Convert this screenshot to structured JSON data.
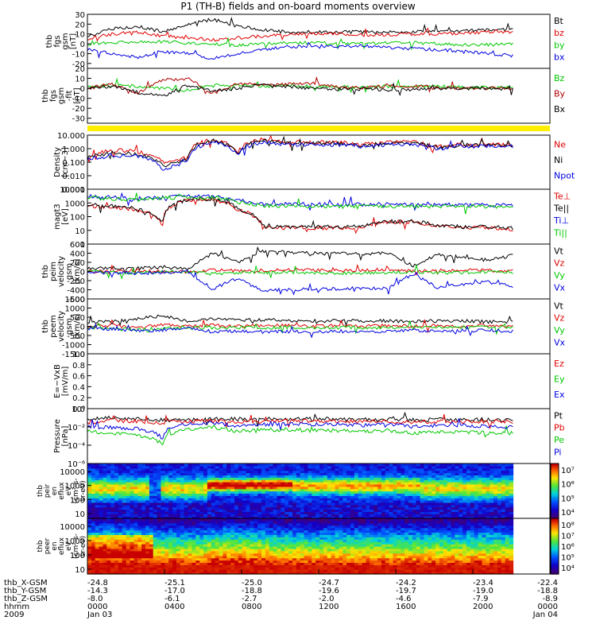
{
  "title": "P1 (TH-B) fields and on-board moments overview",
  "chart_data": [
    {
      "type": "line",
      "ylabel": [
        "thb",
        "fgs",
        "gsm",
        "[nT]"
      ],
      "ylim": [
        -25,
        30
      ],
      "yticks": [
        -20,
        -10,
        0,
        10,
        20,
        30
      ],
      "grid": false,
      "legend_placement": "right",
      "series": [
        {
          "name": "Bt",
          "color": "#000000",
          "values": [
            8,
            15,
            18,
            12,
            20,
            25,
            18,
            14,
            12,
            12,
            12,
            12,
            12,
            12,
            13,
            13,
            14,
            15
          ]
        },
        {
          "name": "bz",
          "color": "#e00000",
          "values": [
            5,
            10,
            12,
            8,
            6,
            4,
            6,
            8,
            9,
            10,
            10,
            9,
            9,
            10,
            10,
            11,
            12,
            12
          ]
        },
        {
          "name": "by",
          "color": "#00c800",
          "values": [
            0,
            1,
            2,
            2,
            1,
            0,
            -2,
            0,
            1,
            1,
            0,
            0,
            1,
            1,
            0,
            -1,
            -1,
            0
          ]
        },
        {
          "name": "bx",
          "color": "#0000e0",
          "values": [
            -6,
            -10,
            -14,
            -8,
            -10,
            -15,
            -10,
            -6,
            -3,
            -2,
            -3,
            -2,
            -4,
            -5,
            -6,
            -8,
            -10,
            -12
          ]
        }
      ]
    },
    {
      "type": "line",
      "ylabel": [
        "thb",
        "fgs",
        "gsm",
        "-fit",
        "[nT]"
      ],
      "ylim": [
        -35,
        20
      ],
      "yticks": [
        -30,
        -20,
        -10,
        0,
        10,
        20
      ],
      "grid": false,
      "legend_placement": "right",
      "series": [
        {
          "name": "Bz",
          "color": "#00c800",
          "values": [
            2,
            3,
            2,
            0,
            -2,
            4,
            3,
            2,
            3,
            2,
            2,
            1,
            2,
            2,
            2,
            1,
            1,
            1
          ]
        },
        {
          "name": "By",
          "color": "#b00000",
          "values": [
            0,
            4,
            -5,
            8,
            10,
            -5,
            5,
            3,
            4,
            5,
            2,
            0,
            3,
            2,
            1,
            0,
            0,
            0
          ]
        },
        {
          "name": "Bx",
          "color": "#000000",
          "values": [
            0,
            2,
            -4,
            -8,
            3,
            -3,
            0,
            4,
            2,
            0,
            -1,
            0,
            -2,
            -1,
            0,
            0,
            0,
            -1
          ]
        }
      ]
    },
    {
      "type": "line",
      "ylabel": [
        "Density",
        "[cm−3]"
      ],
      "yscale": "log",
      "ylim": [
        0.001,
        10
      ],
      "ytick_labels": [
        "0.001",
        "0.010",
        "0.100",
        "1.000",
        "10.000"
      ],
      "grid": false,
      "legend_placement": "right",
      "series": [
        {
          "name": "Ne",
          "color": "#e00000",
          "values": [
            0.3,
            0.8,
            0.6,
            0.1,
            0.2,
            5,
            0.5,
            5,
            3,
            3,
            3,
            2,
            3,
            3,
            1.5,
            2,
            2,
            2
          ]
        },
        {
          "name": "Ni",
          "color": "#000000",
          "values": [
            0.2,
            0.5,
            0.4,
            0.05,
            0.15,
            4,
            0.4,
            4,
            2.5,
            2.5,
            2.5,
            1.8,
            2.5,
            2.5,
            1.2,
            1.8,
            1.8,
            1.8
          ]
        },
        {
          "name": "Npot",
          "color": "#0000e0",
          "values": [
            0.15,
            0.3,
            0.3,
            0.02,
            0.1,
            3,
            0.3,
            3,
            2,
            2,
            2,
            1.5,
            2,
            2,
            1,
            1.5,
            1.5,
            1.5
          ]
        }
      ]
    },
    {
      "type": "line",
      "ylabel": [
        "magt3",
        "[eV]"
      ],
      "yscale": "log",
      "ylim": [
        1,
        10000
      ],
      "ytick_labels": [
        "1",
        "10",
        "100",
        "1000",
        "10000"
      ],
      "grid": false,
      "legend_placement": "right",
      "series": [
        {
          "name": "Te⊥",
          "color": "#e00000",
          "values": [
            600,
            500,
            300,
            20,
            1500,
            1800,
            300,
            15,
            15,
            15,
            15,
            15,
            40,
            40,
            20,
            15,
            15,
            12
          ]
        },
        {
          "name": "Te||",
          "color": "#000000",
          "values": [
            700,
            600,
            350,
            25,
            1700,
            2000,
            350,
            18,
            18,
            18,
            18,
            18,
            45,
            45,
            22,
            18,
            18,
            14
          ]
        },
        {
          "name": "Ti⊥",
          "color": "#0000e0",
          "values": [
            3000,
            2500,
            2000,
            2500,
            3000,
            3000,
            1500,
            800,
            800,
            800,
            800,
            800,
            800,
            700,
            700,
            700,
            700,
            700
          ]
        },
        {
          "name": "Ti||",
          "color": "#00c800",
          "values": [
            2500,
            2000,
            1800,
            2200,
            2500,
            2500,
            1200,
            600,
            600,
            600,
            600,
            600,
            600,
            550,
            550,
            550,
            550,
            550
          ]
        }
      ]
    },
    {
      "type": "line",
      "ylabel": [
        "thb",
        "peim",
        "velocity",
        "gsm",
        "[km/s]"
      ],
      "ylim": [
        -600,
        600
      ],
      "yticks": [
        -600,
        -400,
        -200,
        0,
        200,
        400,
        600
      ],
      "grid": false,
      "legend_placement": "right",
      "series": [
        {
          "name": "Vt",
          "color": "#000000",
          "values": [
            60,
            80,
            70,
            100,
            50,
            400,
            200,
            450,
            420,
            400,
            400,
            380,
            400,
            120,
            380,
            300,
            250,
            350
          ]
        },
        {
          "name": "Vz",
          "color": "#e00000",
          "values": [
            0,
            10,
            20,
            0,
            -10,
            30,
            10,
            20,
            40,
            30,
            20,
            30,
            40,
            10,
            20,
            30,
            20,
            10
          ]
        },
        {
          "name": "Vy",
          "color": "#00c800",
          "values": [
            0,
            -20,
            -30,
            -10,
            0,
            -50,
            -20,
            -30,
            -20,
            -30,
            -40,
            -30,
            -20,
            0,
            -30,
            -20,
            -10,
            -20
          ]
        },
        {
          "name": "Vx",
          "color": "#0000e0",
          "values": [
            -20,
            -30,
            -40,
            -20,
            0,
            -380,
            -150,
            -420,
            -400,
            -380,
            -380,
            -360,
            -380,
            -50,
            -350,
            -280,
            -230,
            -320
          ]
        }
      ]
    },
    {
      "type": "line",
      "ylabel": [
        "thb",
        "peem",
        "velocity",
        "gsm",
        "[km/s]"
      ],
      "ylim": [
        -1500,
        1500
      ],
      "yticks": [
        -1500,
        -1000,
        -500,
        0,
        500,
        1000,
        1500
      ],
      "grid": false,
      "legend_placement": "right",
      "series": [
        {
          "name": "Vt",
          "color": "#000000",
          "values": [
            200,
            300,
            400,
            600,
            300,
            400,
            350,
            350,
            300,
            300,
            300,
            300,
            300,
            250,
            300,
            300,
            250,
            250
          ]
        },
        {
          "name": "Vz",
          "color": "#e00000",
          "values": [
            0,
            50,
            -100,
            100,
            0,
            50,
            0,
            50,
            50,
            0,
            50,
            0,
            50,
            0,
            50,
            0,
            50,
            0
          ]
        },
        {
          "name": "Vy",
          "color": "#00c800",
          "values": [
            -50,
            -100,
            -200,
            -100,
            -50,
            -80,
            -60,
            -80,
            -60,
            -80,
            -60,
            -80,
            -60,
            -50,
            -60,
            -50,
            -60,
            -50
          ]
        },
        {
          "name": "Vx",
          "color": "#0000e0",
          "values": [
            -100,
            -150,
            -250,
            -200,
            -100,
            -300,
            -250,
            -300,
            -280,
            -280,
            -280,
            -260,
            -280,
            -200,
            -260,
            -240,
            -220,
            -260
          ]
        }
      ]
    },
    {
      "type": "line",
      "ylabel": [
        "E=−VxB",
        "[mV/m]"
      ],
      "ylim": [
        0,
        1
      ],
      "yticks": [
        0.0,
        0.2,
        0.4,
        0.6,
        0.8,
        1.0
      ],
      "ytick_labels": [
        "0.0",
        "0.2",
        "0.4",
        "0.6",
        "0.8",
        "1.0"
      ],
      "grid": false,
      "legend_placement": "right",
      "series": [
        {
          "name": "Ez",
          "color": "#e00000",
          "values": []
        },
        {
          "name": "Ey",
          "color": "#00c800",
          "values": []
        },
        {
          "name": "Ex",
          "color": "#0000e0",
          "values": []
        }
      ]
    },
    {
      "type": "line",
      "ylabel": [
        "Pressure",
        "[nPa]"
      ],
      "yscale": "log",
      "ylim": [
        1e-06,
        1
      ],
      "ytick_labels": [
        "10⁻⁶",
        "10⁻⁴",
        "10⁻²",
        "10⁰"
      ],
      "grid": false,
      "legend_placement": "right",
      "series": [
        {
          "name": "Pt",
          "color": "#000000",
          "values": [
            0.08,
            0.1,
            0.08,
            0.05,
            0.06,
            0.08,
            0.07,
            0.07,
            0.08,
            0.07,
            0.07,
            0.06,
            0.07,
            0.06,
            0.06,
            0.07,
            0.06,
            0.06
          ]
        },
        {
          "name": "Pb",
          "color": "#e00000",
          "values": [
            0.03,
            0.05,
            0.04,
            0.03,
            0.04,
            0.05,
            0.04,
            0.04,
            0.05,
            0.04,
            0.04,
            0.04,
            0.04,
            0.03,
            0.04,
            0.04,
            0.04,
            0.04
          ]
        },
        {
          "name": "Pe",
          "color": "#00c800",
          "values": [
            0.003,
            0.002,
            0.001,
            0.0001,
            0.005,
            0.008,
            0.003,
            0.005,
            0.005,
            0.004,
            0.004,
            0.003,
            0.004,
            0.002,
            0.003,
            0.003,
            0.002,
            0.002
          ]
        },
        {
          "name": "Pi",
          "color": "#0000e0",
          "values": [
            0.01,
            0.008,
            0.006,
            0.0005,
            0.02,
            0.03,
            0.01,
            0.02,
            0.02,
            0.02,
            0.02,
            0.015,
            0.02,
            0.01,
            0.015,
            0.015,
            0.01,
            0.01
          ]
        }
      ]
    },
    {
      "type": "heatmap",
      "ylabel": [
        "thb",
        "peir",
        "en",
        "eflux",
        "eV",
        "(cm²-s-",
        "sr-eV)"
      ],
      "yscale": "log",
      "ylim": [
        10,
        20000
      ],
      "ytick_labels": [
        "10",
        "100",
        "1000",
        "10000"
      ],
      "colorbar_labels": [
        "10⁴",
        "10⁵",
        "10⁶",
        "10⁷"
      ],
      "clim": [
        3000,
        10000000
      ]
    },
    {
      "type": "heatmap",
      "ylabel": [
        "thb",
        "peer",
        "en",
        "eflux",
        "eV",
        "(cm²-s-",
        "sr-eV)"
      ],
      "yscale": "log",
      "ylim": [
        8,
        20000
      ],
      "ytick_labels": [
        "10",
        "100",
        "1000",
        "10000"
      ],
      "colorbar_labels": [
        "10⁴",
        "10⁵",
        "10⁶",
        "10⁷",
        "10⁸"
      ],
      "clim": [
        3000,
        200000000
      ]
    }
  ],
  "footer": {
    "row_labels": [
      "thb_X-GSM",
      "thb_Y-GSM",
      "thb_Z-GSM",
      "hhmm",
      "2009"
    ],
    "columns": [
      {
        "x": "-24.8",
        "y": "-14.3",
        "z": "-8.0",
        "hhmm": "0000",
        "date": "Jan 03"
      },
      {
        "x": "-25.1",
        "y": "-17.0",
        "z": "-6.1",
        "hhmm": "0400",
        "date": ""
      },
      {
        "x": "-25.0",
        "y": "-18.8",
        "z": "-2.7",
        "hhmm": "0800",
        "date": ""
      },
      {
        "x": "-24.7",
        "y": "-19.6",
        "z": "-2.0",
        "hhmm": "1200",
        "date": ""
      },
      {
        "x": "-24.2",
        "y": "-19.7",
        "z": "-4.6",
        "hhmm": "1600",
        "date": ""
      },
      {
        "x": "-23.4",
        "y": "-19.0",
        "z": "-7.9",
        "hhmm": "2000",
        "date": ""
      },
      {
        "x": "-22.4",
        "y": "-18.8",
        "z": "-8.9",
        "hhmm": "0000",
        "date": "Jan 04"
      }
    ]
  },
  "colors": {
    "status_bar": "#ffee00"
  }
}
